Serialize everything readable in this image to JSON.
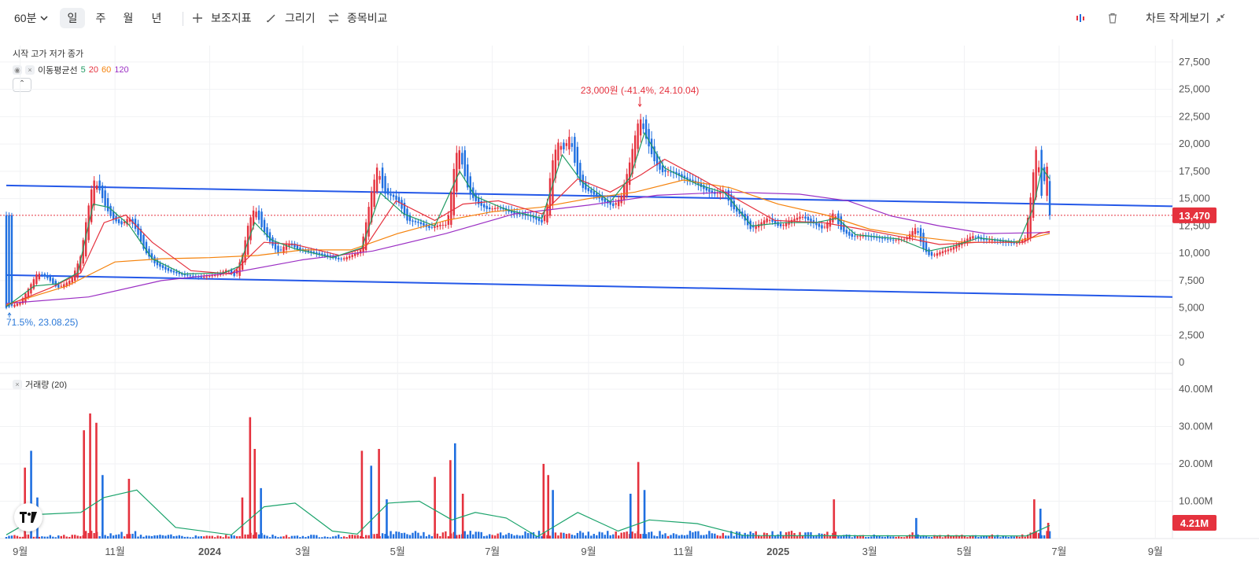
{
  "toolbar": {
    "interval": "60분",
    "periods": [
      "일",
      "주",
      "월",
      "년"
    ],
    "active_period": "일",
    "indicators_label": "보조지표",
    "draw_label": "그리기",
    "compare_label": "종목비교",
    "compact_label": "차트 작게보기"
  },
  "legend": {
    "ohlc_label": "시작 고가 저가 종가",
    "ma_label": "이동평균선",
    "ma_periods": [
      "5",
      "20",
      "60",
      "120"
    ],
    "volume_label": "거래량 (20)"
  },
  "colors": {
    "up": "#e5323e",
    "down": "#1f6fe0",
    "ma5": "#1f9a62",
    "ma20": "#e5323e",
    "ma60": "#f5820b",
    "ma120": "#9b2fc4",
    "trendline": "#2458e8",
    "vol_ma": "#1aa36b",
    "price_badge": "#e5323e"
  },
  "chart_data": {
    "type": "candlestick",
    "x_ticks": [
      "9월",
      "11월",
      "2024",
      "3월",
      "5월",
      "7월",
      "9월",
      "11월",
      "2025",
      "3월",
      "5월",
      "7월",
      "9월"
    ],
    "x_range": [
      "2023-08-23",
      "2025-09-12"
    ],
    "y_ticks": [
      "27,500",
      "25,000",
      "22,500",
      "20,000",
      "17,500",
      "15,000",
      "12,500",
      "10,000",
      "7,500",
      "5,000",
      "2,500",
      "0"
    ],
    "ylim": [
      0,
      27500
    ],
    "current_price": 13470,
    "current_price_label": "13,470",
    "max_annotation": {
      "text": "23,000원 (-41.4%, 24.10.04)",
      "date": "2024-10-04",
      "value": 23000
    },
    "min_annotation": {
      "text": "71.5%, 23.08.25)",
      "date": "2023-08-25",
      "value": 4800
    },
    "trendlines": [
      {
        "from": [
          "2023-08-23",
          16200
        ],
        "to": [
          "2025-09-12",
          14300
        ]
      },
      {
        "from": [
          "2023-08-23",
          8000
        ],
        "to": [
          "2025-09-12",
          6000
        ]
      }
    ],
    "close_path": [
      [
        "2023-08-23",
        5000
      ],
      [
        "2023-09-01",
        5500
      ],
      [
        "2023-09-08",
        7200
      ],
      [
        "2023-09-12",
        8200
      ],
      [
        "2023-09-18",
        7800
      ],
      [
        "2023-09-25",
        6800
      ],
      [
        "2023-10-04",
        7600
      ],
      [
        "2023-10-10",
        9800
      ],
      [
        "2023-10-14",
        13500
      ],
      [
        "2023-10-18",
        16800
      ],
      [
        "2023-10-22",
        15800
      ],
      [
        "2023-10-26",
        14200
      ],
      [
        "2023-10-30",
        13200
      ],
      [
        "2023-11-05",
        12600
      ],
      [
        "2023-11-10",
        13300
      ],
      [
        "2023-11-15",
        12000
      ],
      [
        "2023-11-20",
        10200
      ],
      [
        "2023-11-27",
        9000
      ],
      [
        "2023-12-05",
        8400
      ],
      [
        "2023-12-15",
        8000
      ],
      [
        "2023-12-25",
        7800
      ],
      [
        "2024-01-05",
        8000
      ],
      [
        "2024-01-12",
        8500
      ],
      [
        "2024-01-17",
        7900
      ],
      [
        "2024-01-22",
        9800
      ],
      [
        "2024-01-26",
        12800
      ],
      [
        "2024-01-30",
        14200
      ],
      [
        "2024-02-03",
        12500
      ],
      [
        "2024-02-08",
        11200
      ],
      [
        "2024-02-14",
        10000
      ],
      [
        "2024-02-20",
        11000
      ],
      [
        "2024-02-26",
        10400
      ],
      [
        "2024-03-06",
        10100
      ],
      [
        "2024-03-15",
        9800
      ],
      [
        "2024-03-25",
        9400
      ],
      [
        "2024-04-01",
        9800
      ],
      [
        "2024-04-07",
        10200
      ],
      [
        "2024-04-10",
        12300
      ],
      [
        "2024-04-14",
        15500
      ],
      [
        "2024-04-18",
        18000
      ],
      [
        "2024-04-22",
        15500
      ],
      [
        "2024-04-28",
        15200
      ],
      [
        "2024-05-02",
        14600
      ],
      [
        "2024-05-07",
        13000
      ],
      [
        "2024-05-14",
        12800
      ],
      [
        "2024-05-21",
        12300
      ],
      [
        "2024-05-28",
        12600
      ],
      [
        "2024-06-02",
        12600
      ],
      [
        "2024-06-06",
        17500
      ],
      [
        "2024-06-09",
        20000
      ],
      [
        "2024-06-12",
        17800
      ],
      [
        "2024-06-16",
        15500
      ],
      [
        "2024-06-22",
        14500
      ],
      [
        "2024-06-28",
        14000
      ],
      [
        "2024-07-05",
        14200
      ],
      [
        "2024-07-15",
        13600
      ],
      [
        "2024-07-25",
        13400
      ],
      [
        "2024-08-02",
        12800
      ],
      [
        "2024-08-05",
        14000
      ],
      [
        "2024-08-08",
        18000
      ],
      [
        "2024-08-12",
        20200
      ],
      [
        "2024-08-16",
        19500
      ],
      [
        "2024-08-20",
        20800
      ],
      [
        "2024-08-24",
        17500
      ],
      [
        "2024-08-28",
        16000
      ],
      [
        "2024-09-03",
        15500
      ],
      [
        "2024-09-10",
        14800
      ],
      [
        "2024-09-17",
        14300
      ],
      [
        "2024-09-22",
        15200
      ],
      [
        "2024-09-27",
        18000
      ],
      [
        "2024-10-02",
        21500
      ],
      [
        "2024-10-04",
        22500
      ],
      [
        "2024-10-08",
        20500
      ],
      [
        "2024-10-13",
        18500
      ],
      [
        "2024-10-18",
        17400
      ],
      [
        "2024-10-23",
        17500
      ],
      [
        "2024-10-28",
        17200
      ],
      [
        "2024-11-02",
        16800
      ],
      [
        "2024-11-08",
        16500
      ],
      [
        "2024-11-15",
        15800
      ],
      [
        "2024-11-21",
        15400
      ],
      [
        "2024-11-27",
        15800
      ],
      [
        "2024-12-02",
        14200
      ],
      [
        "2024-12-09",
        13400
      ],
      [
        "2024-12-14",
        12200
      ],
      [
        "2024-12-19",
        12600
      ],
      [
        "2024-12-25",
        13200
      ],
      [
        "2025-01-02",
        12400
      ],
      [
        "2025-01-09",
        13000
      ],
      [
        "2025-01-16",
        13400
      ],
      [
        "2025-01-23",
        12800
      ],
      [
        "2025-01-30",
        12200
      ],
      [
        "2025-02-06",
        13800
      ],
      [
        "2025-02-10",
        12200
      ],
      [
        "2025-02-17",
        11500
      ],
      [
        "2025-02-24",
        11600
      ],
      [
        "2025-03-05",
        11400
      ],
      [
        "2025-03-15",
        11200
      ],
      [
        "2025-03-24",
        11300
      ],
      [
        "2025-03-31",
        12400
      ],
      [
        "2025-04-04",
        10500
      ],
      [
        "2025-04-09",
        9700
      ],
      [
        "2025-04-15",
        10100
      ],
      [
        "2025-04-22",
        10400
      ],
      [
        "2025-04-29",
        11000
      ],
      [
        "2025-05-06",
        11600
      ],
      [
        "2025-05-13",
        11200
      ],
      [
        "2025-05-20",
        11200
      ],
      [
        "2025-05-27",
        11000
      ],
      [
        "2025-06-03",
        10900
      ],
      [
        "2025-06-09",
        11300
      ],
      [
        "2025-06-13",
        15500
      ],
      [
        "2025-06-16",
        19600
      ],
      [
        "2025-06-18",
        17800
      ],
      [
        "2025-06-20",
        14800
      ],
      [
        "2025-06-23",
        18500
      ],
      [
        "2025-06-25",
        13470
      ]
    ],
    "ma_paths": {
      "ma5": [
        [
          "2023-08-23",
          5100
        ],
        [
          "2023-09-10",
          7000
        ],
        [
          "2023-09-25",
          7200
        ],
        [
          "2023-10-08",
          8200
        ],
        [
          "2023-10-18",
          14500
        ],
        [
          "2023-10-28",
          14200
        ],
        [
          "2023-11-10",
          12600
        ],
        [
          "2023-11-25",
          9500
        ],
        [
          "2023-12-15",
          8100
        ],
        [
          "2024-01-10",
          8200
        ],
        [
          "2024-01-20",
          8800
        ],
        [
          "2024-01-30",
          12800
        ],
        [
          "2024-02-10",
          11200
        ],
        [
          "2024-02-25",
          10400
        ],
        [
          "2024-03-20",
          9600
        ],
        [
          "2024-04-08",
          10500
        ],
        [
          "2024-04-20",
          15500
        ],
        [
          "2024-05-05",
          13600
        ],
        [
          "2024-05-25",
          12500
        ],
        [
          "2024-06-10",
          17500
        ],
        [
          "2024-06-20",
          15200
        ],
        [
          "2024-07-10",
          14000
        ],
        [
          "2024-08-02",
          13200
        ],
        [
          "2024-08-15",
          19000
        ],
        [
          "2024-08-28",
          16500
        ],
        [
          "2024-09-15",
          14700
        ],
        [
          "2024-09-28",
          17000
        ],
        [
          "2024-10-07",
          21000
        ],
        [
          "2024-10-20",
          17800
        ],
        [
          "2024-11-10",
          16300
        ],
        [
          "2024-11-28",
          15500
        ],
        [
          "2024-12-15",
          12500
        ],
        [
          "2025-01-05",
          12800
        ],
        [
          "2025-01-25",
          12800
        ],
        [
          "2025-02-08",
          13200
        ],
        [
          "2025-02-20",
          11700
        ],
        [
          "2025-03-20",
          11300
        ],
        [
          "2025-04-08",
          10200
        ],
        [
          "2025-04-25",
          10700
        ],
        [
          "2025-05-10",
          11400
        ],
        [
          "2025-06-05",
          11000
        ],
        [
          "2025-06-14",
          14000
        ],
        [
          "2025-06-20",
          17800
        ],
        [
          "2025-06-25",
          16800
        ]
      ],
      "ma20": [
        [
          "2023-08-23",
          5200
        ],
        [
          "2023-09-20",
          6800
        ],
        [
          "2023-10-10",
          8200
        ],
        [
          "2023-10-25",
          12800
        ],
        [
          "2023-11-08",
          13500
        ],
        [
          "2023-11-25",
          11000
        ],
        [
          "2023-12-20",
          8400
        ],
        [
          "2024-01-15",
          8100
        ],
        [
          "2024-02-05",
          11000
        ],
        [
          "2024-02-25",
          10800
        ],
        [
          "2024-03-25",
          9800
        ],
        [
          "2024-04-10",
          10500
        ],
        [
          "2024-04-30",
          14800
        ],
        [
          "2024-05-25",
          13000
        ],
        [
          "2024-06-12",
          14500
        ],
        [
          "2024-07-05",
          14800
        ],
        [
          "2024-08-02",
          13600
        ],
        [
          "2024-08-25",
          16800
        ],
        [
          "2024-09-15",
          15600
        ],
        [
          "2024-10-05",
          17200
        ],
        [
          "2024-10-20",
          18600
        ],
        [
          "2024-11-10",
          17000
        ],
        [
          "2024-12-05",
          15000
        ],
        [
          "2024-12-30",
          13000
        ],
        [
          "2025-01-30",
          12800
        ],
        [
          "2025-02-20",
          12300
        ],
        [
          "2025-03-25",
          11400
        ],
        [
          "2025-04-15",
          10800
        ],
        [
          "2025-05-10",
          11000
        ],
        [
          "2025-06-08",
          11000
        ],
        [
          "2025-06-18",
          11800
        ],
        [
          "2025-06-25",
          12000
        ]
      ],
      "ma60": [
        [
          "2023-08-23",
          5300
        ],
        [
          "2023-10-01",
          7000
        ],
        [
          "2023-11-01",
          9200
        ],
        [
          "2023-12-01",
          9500
        ],
        [
          "2024-01-01",
          9600
        ],
        [
          "2024-02-01",
          9800
        ],
        [
          "2024-03-01",
          10300
        ],
        [
          "2024-04-01",
          10300
        ],
        [
          "2024-05-01",
          11800
        ],
        [
          "2024-06-01",
          13000
        ],
        [
          "2024-07-01",
          13800
        ],
        [
          "2024-08-01",
          14200
        ],
        [
          "2024-09-01",
          15000
        ],
        [
          "2024-10-01",
          15600
        ],
        [
          "2024-11-01",
          16700
        ],
        [
          "2024-12-01",
          16000
        ],
        [
          "2025-01-01",
          14500
        ],
        [
          "2025-02-01",
          13500
        ],
        [
          "2025-03-01",
          12200
        ],
        [
          "2025-04-01",
          11500
        ],
        [
          "2025-05-01",
          11000
        ],
        [
          "2025-06-01",
          11000
        ],
        [
          "2025-06-25",
          11800
        ]
      ],
      "ma120": [
        [
          "2023-08-23",
          5400
        ],
        [
          "2023-10-15",
          6000
        ],
        [
          "2023-12-01",
          7500
        ],
        [
          "2024-01-15",
          8200
        ],
        [
          "2024-03-01",
          9400
        ],
        [
          "2024-04-15",
          10200
        ],
        [
          "2024-06-01",
          11800
        ],
        [
          "2024-07-15",
          13600
        ],
        [
          "2024-09-01",
          14400
        ],
        [
          "2024-10-15",
          15300
        ],
        [
          "2024-12-01",
          15600
        ],
        [
          "2025-01-15",
          15400
        ],
        [
          "2025-02-15",
          14800
        ],
        [
          "2025-03-15",
          13400
        ],
        [
          "2025-04-15",
          12500
        ],
        [
          "2025-05-15",
          11800
        ],
        [
          "2025-06-25",
          11900
        ]
      ]
    },
    "volume": {
      "y_ticks": [
        "40.00M",
        "30.00M",
        "20.00M",
        "10.00M"
      ],
      "ylim": [
        0,
        40000000
      ],
      "current_label": "4.21M",
      "current_value": 4210000,
      "spikes": [
        [
          "2023-09-04",
          19000000,
          "up"
        ],
        [
          "2023-09-08",
          23500000,
          "down"
        ],
        [
          "2023-09-12",
          11000000,
          "down"
        ],
        [
          "2023-10-12",
          29000000,
          "up"
        ],
        [
          "2023-10-16",
          33500000,
          "up"
        ],
        [
          "2023-10-20",
          31000000,
          "up"
        ],
        [
          "2023-10-24",
          17000000,
          "down"
        ],
        [
          "2023-11-10",
          16000000,
          "up"
        ],
        [
          "2024-01-22",
          11000000,
          "up"
        ],
        [
          "2024-01-27",
          32500000,
          "up"
        ],
        [
          "2024-01-30",
          24000000,
          "up"
        ],
        [
          "2024-02-03",
          13500000,
          "down"
        ],
        [
          "2024-04-08",
          23500000,
          "up"
        ],
        [
          "2024-04-14",
          19500000,
          "down"
        ],
        [
          "2024-04-19",
          24000000,
          "up"
        ],
        [
          "2024-04-24",
          10500000,
          "down"
        ],
        [
          "2024-05-25",
          16500000,
          "up"
        ],
        [
          "2024-06-04",
          21000000,
          "up"
        ],
        [
          "2024-06-07",
          25500000,
          "down"
        ],
        [
          "2024-06-12",
          12000000,
          "up"
        ],
        [
          "2024-08-03",
          20000000,
          "up"
        ],
        [
          "2024-08-06",
          17000000,
          "up"
        ],
        [
          "2024-08-09",
          13000000,
          "down"
        ],
        [
          "2024-09-28",
          12000000,
          "down"
        ],
        [
          "2024-10-03",
          20500000,
          "up"
        ],
        [
          "2024-10-07",
          13000000,
          "down"
        ],
        [
          "2025-02-06",
          10500000,
          "up"
        ],
        [
          "2025-03-31",
          5500000,
          "down"
        ],
        [
          "2025-06-15",
          10500000,
          "up"
        ],
        [
          "2025-06-19",
          8000000,
          "down"
        ],
        [
          "2025-06-24",
          4210000,
          "up"
        ]
      ],
      "ma_path": [
        [
          "2023-08-23",
          1000000
        ],
        [
          "2023-09-15",
          6500000
        ],
        [
          "2023-10-10",
          7000000
        ],
        [
          "2023-10-25",
          11000000
        ],
        [
          "2023-11-15",
          13000000
        ],
        [
          "2023-12-10",
          3000000
        ],
        [
          "2024-01-15",
          1000000
        ],
        [
          "2024-02-05",
          8500000
        ],
        [
          "2024-02-25",
          9500000
        ],
        [
          "2024-03-20",
          2000000
        ],
        [
          "2024-04-05",
          1200000
        ],
        [
          "2024-04-25",
          9500000
        ],
        [
          "2024-05-15",
          10000000
        ],
        [
          "2024-06-05",
          5000000
        ],
        [
          "2024-06-20",
          7000000
        ],
        [
          "2024-07-10",
          5500000
        ],
        [
          "2024-07-30",
          500000
        ],
        [
          "2024-08-25",
          7000000
        ],
        [
          "2024-09-20",
          2000000
        ],
        [
          "2024-10-10",
          5000000
        ],
        [
          "2024-11-10",
          4000000
        ],
        [
          "2024-12-10",
          800000
        ],
        [
          "2025-06-10",
          700000
        ],
        [
          "2025-06-25",
          3500000
        ]
      ]
    }
  }
}
